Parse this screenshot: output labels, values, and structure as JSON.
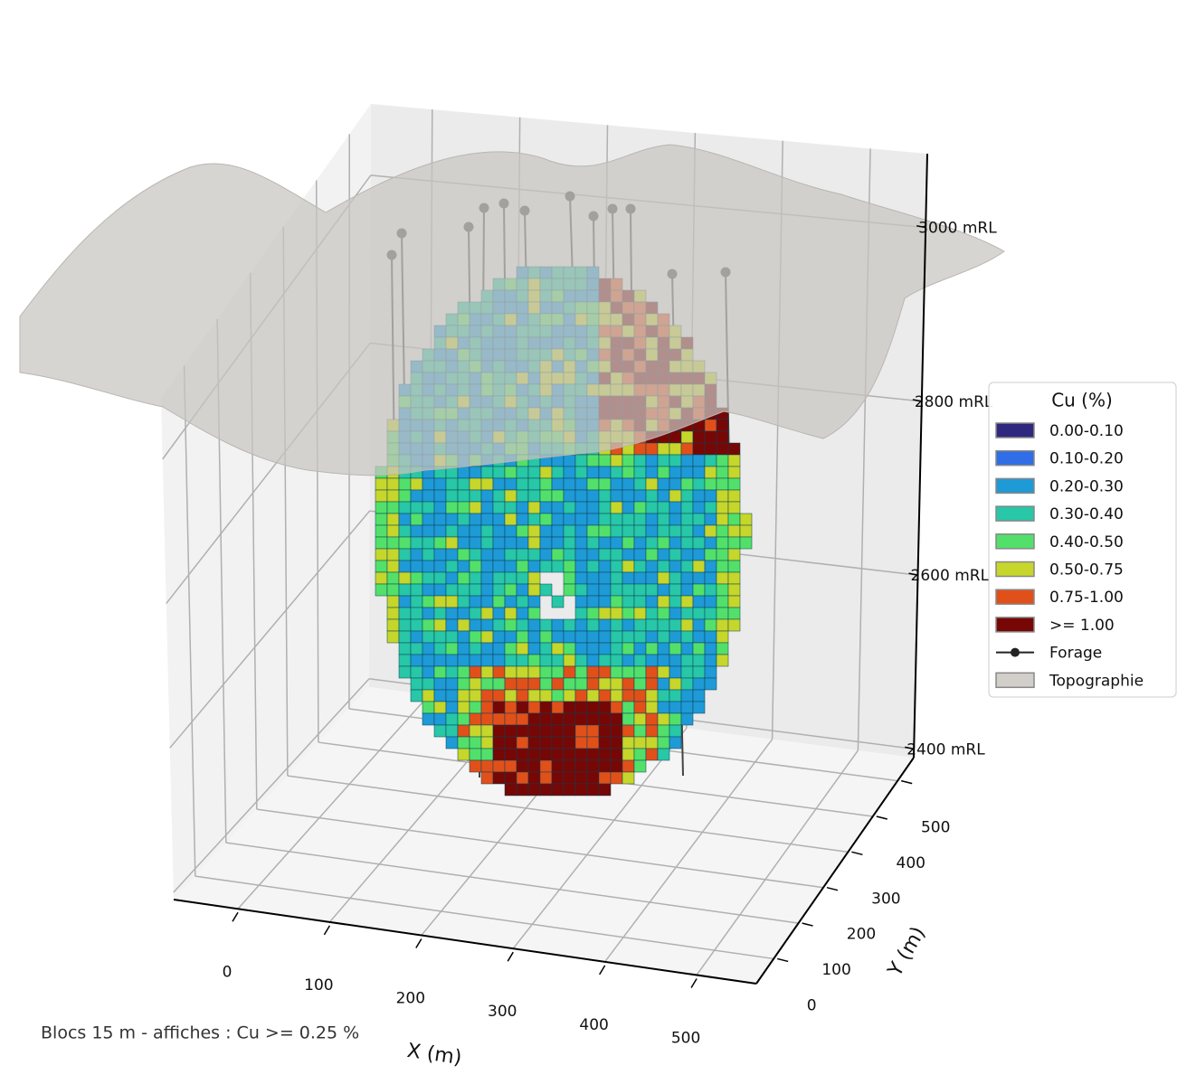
{
  "chart_data": {
    "type": "voxel3d",
    "xlabel": "X (m)",
    "ylabel": "Y (m)",
    "xlim": [
      -70,
      565
    ],
    "ylim": [
      -70,
      565
    ],
    "zlim": [
      2390,
      3085
    ],
    "xticks": [
      0,
      100,
      200,
      300,
      400,
      500
    ],
    "yticks": [
      0,
      100,
      200,
      300,
      400,
      500
    ],
    "zticks": [
      {
        "value": 2400,
        "label": "2400 mRL"
      },
      {
        "value": 2600,
        "label": "2600 mRL"
      },
      {
        "value": 2800,
        "label": "2800 mRL"
      },
      {
        "value": 3000,
        "label": "3000 mRL"
      }
    ],
    "grid": true,
    "legend": {
      "title": "Cu (%)",
      "position": "right",
      "items": [
        {
          "label": "0.00-0.10",
          "color": "#30287f"
        },
        {
          "label": "0.10-0.20",
          "color": "#2f6ee6"
        },
        {
          "label": "0.20-0.30",
          "color": "#1e9ad6"
        },
        {
          "label": "0.30-0.40",
          "color": "#27c7a7"
        },
        {
          "label": "0.40-0.50",
          "color": "#52e06a"
        },
        {
          "label": "0.50-0.75",
          "color": "#c6d62a"
        },
        {
          "label": "0.75-1.00",
          "color": "#e2501a"
        },
        {
          "label": ">= 1.00",
          "color": "#760705"
        },
        {
          "label": "Forage",
          "color": "#222222"
        },
        {
          "label": "Topographie",
          "color": "#d2cfcb"
        }
      ]
    },
    "footnote": "Blocs 15 m  -  affiches : Cu >= 0.25 %"
  }
}
